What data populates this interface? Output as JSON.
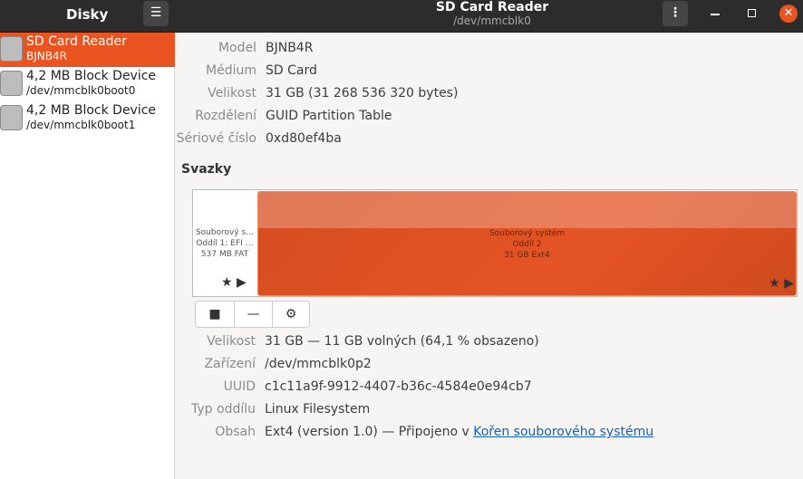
{
  "window": {
    "app_title": "Disky",
    "title": "SD Card Reader",
    "subtitle": "/dev/mmcblk0"
  },
  "sidebar": {
    "items": [
      {
        "name": "SD Card Reader",
        "sub": "BJNB4R",
        "selected": true,
        "icon": "sd-card-icon"
      },
      {
        "name": "4,2 MB Block Device",
        "sub": "/dev/mmcblk0boot0",
        "icon": "drive-icon"
      },
      {
        "name": "4,2 MB Block Device",
        "sub": "/dev/mmcblk0boot1",
        "icon": "drive-icon"
      }
    ]
  },
  "drive": [
    {
      "label": "Model",
      "value": "BJNB4R"
    },
    {
      "label": "Médium",
      "value": "SD Card"
    },
    {
      "label": "Velikost",
      "value": "31 GB (31 268 536 320 bytes)"
    },
    {
      "label": "Rozdělení",
      "value": "GUID Partition Table"
    },
    {
      "label": "Sériové číslo",
      "value": "0xd80ef4ba"
    }
  ],
  "volumes_heading": "Svazky",
  "partitions": [
    {
      "l1": "Souborový s…",
      "l2": "Oddíl 1: EFI …",
      "l3": "537 MB FAT"
    },
    {
      "l1": "Souborový systém",
      "l2": "Oddíl 2",
      "l3": "31 GB Ext4",
      "selected": true
    }
  ],
  "accent": "#e95420",
  "volume": [
    {
      "label": "Velikost",
      "value": "31 GB — 11 GB volných (64,1 % obsazeno)"
    },
    {
      "label": "Zařízení",
      "value": "/dev/mmcblk0p2"
    },
    {
      "label": "UUID",
      "value": "c1c11a9f-9912-4407-b36c-4584e0e94cb7"
    },
    {
      "label": "Typ oddílu",
      "value": "Linux Filesystem"
    },
    {
      "label": "Obsah",
      "value": "Ext4 (version 1.0) — Připojeno v ",
      "link": "Kořen souborového systému"
    }
  ]
}
